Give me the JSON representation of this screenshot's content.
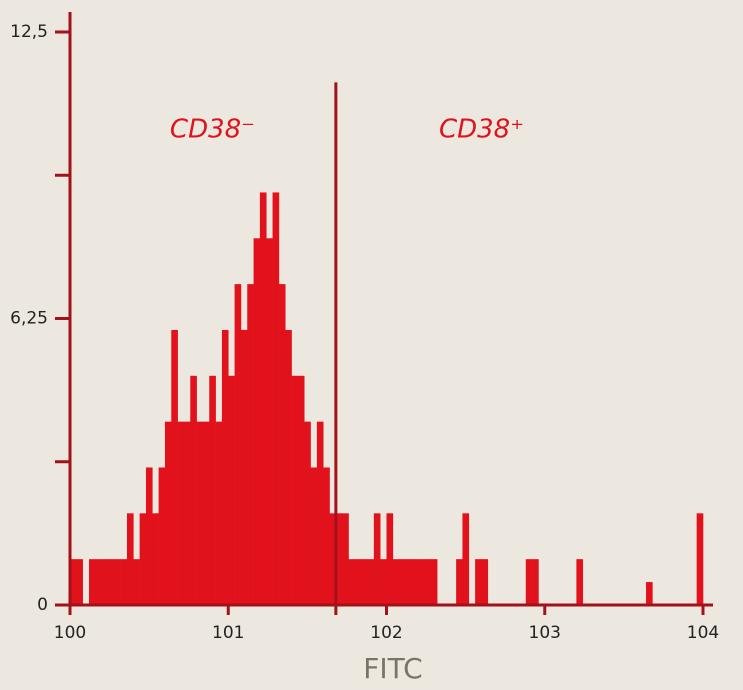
{
  "chart_data": {
    "type": "histogram",
    "xlabel": "FITC",
    "annotations": [
      {
        "text": "CD38⁻",
        "x": 100.9
      },
      {
        "text": "CD38⁺",
        "x": 102.6
      }
    ],
    "gate": {
      "x": 101.68,
      "top": 11.4
    },
    "bins": [
      100,
      100.04,
      100.08,
      100.12,
      100.16,
      100.2,
      100.24,
      100.28,
      100.32,
      100.36,
      100.4,
      100.44,
      100.48,
      100.52,
      100.56,
      100.6,
      100.64,
      100.68,
      100.72,
      100.76,
      100.8,
      100.84,
      100.88,
      100.92,
      100.96,
      101,
      101.04,
      101.08,
      101.12,
      101.16,
      101.2,
      101.24,
      101.28,
      101.32,
      101.36,
      101.4,
      101.44,
      101.48,
      101.52,
      101.56,
      101.6,
      101.64,
      101.68,
      101.72,
      101.76,
      101.8,
      101.84,
      101.88,
      101.92,
      101.96,
      102,
      102.04,
      102.08,
      102.12,
      102.16,
      102.2,
      102.24,
      102.28,
      102.32,
      102.36,
      102.4,
      102.44,
      102.48,
      102.52,
      102.56,
      102.6,
      102.64,
      102.68,
      102.72,
      102.76,
      102.8,
      102.84,
      102.88,
      102.92,
      102.96,
      103,
      103.04,
      103.08,
      103.12,
      103.16,
      103.2,
      103.24,
      103.28,
      103.32,
      103.36,
      103.4,
      103.44,
      103.48,
      103.52,
      103.56,
      103.6,
      103.64,
      103.68,
      103.72,
      103.76,
      103.8,
      103.84,
      103.88,
      103.92,
      103.96,
      104
    ],
    "values": [
      1,
      1,
      0,
      1,
      1,
      1,
      1,
      1,
      1,
      2,
      1,
      2,
      3,
      2,
      3,
      4,
      6,
      4,
      4,
      5,
      4,
      4,
      5,
      4,
      6,
      5,
      7,
      6,
      7,
      8,
      9,
      8,
      9,
      7,
      6,
      5,
      5,
      4,
      3,
      4,
      3,
      2,
      2,
      2,
      1,
      1,
      1,
      1,
      2,
      1,
      2,
      1,
      1,
      1,
      1,
      1,
      1,
      1,
      0,
      0,
      0,
      1,
      2,
      0,
      1,
      1,
      0,
      0,
      0,
      0,
      0,
      0,
      1,
      1,
      0,
      0,
      0,
      0,
      0,
      0,
      1,
      0,
      0,
      0,
      0,
      0,
      0,
      0,
      0,
      0,
      0,
      0.5,
      0,
      0,
      0,
      0,
      0,
      0,
      0,
      2
    ],
    "color": "#e1121b",
    "axis_color": "#a3121a",
    "xlim": [
      100,
      104
    ],
    "xticks": [
      100,
      101,
      102,
      103,
      104
    ],
    "ylim": [
      0,
      12.5
    ],
    "yticks": [
      0,
      {
        "value": 6.25,
        "label": "6,25"
      },
      {
        "value": 12.5,
        "label": "12,5"
      }
    ],
    "yminorticks": [
      3.125,
      9.375
    ]
  }
}
